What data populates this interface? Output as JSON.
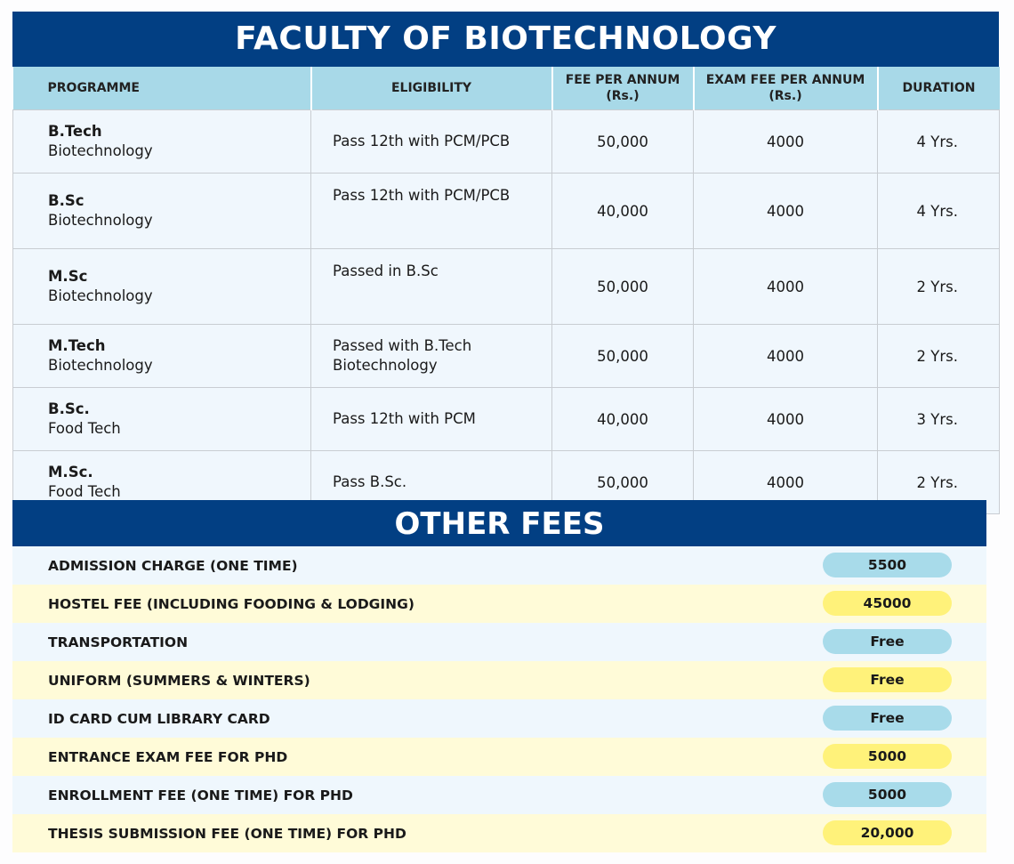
{
  "title": "FACULTY OF BIOTECHNOLOGY",
  "columns": {
    "programme": "PROGRAMME",
    "eligibility": "ELIGIBILITY",
    "fee_line1": "FEE PER ANNUM",
    "fee_line2": "(Rs.)",
    "exam_line1": "EXAM FEE PER ANNUM",
    "exam_line2": "(Rs.)",
    "duration": "DURATION"
  },
  "rows": [
    {
      "degree": "B.Tech",
      "subject": "Biotechnology",
      "eligibility": "Pass 12th with PCM/PCB",
      "fee": "50,000",
      "exam_fee": "4000",
      "duration": "4 Yrs."
    },
    {
      "degree": "B.Sc",
      "subject": "Biotechnology",
      "eligibility": "Pass 12th with PCM/PCB",
      "fee": "40,000",
      "exam_fee": "4000",
      "duration": "4 Yrs."
    },
    {
      "degree": "M.Sc",
      "subject": "Biotechnology",
      "eligibility": "Passed in B.Sc",
      "fee": "50,000",
      "exam_fee": "4000",
      "duration": "2 Yrs."
    },
    {
      "degree": "M.Tech",
      "subject": "Biotechnology",
      "eligibility": "Passed with B.Tech Biotechnology",
      "fee": "50,000",
      "exam_fee": "4000",
      "duration": "2 Yrs."
    },
    {
      "degree": "B.Sc.",
      "subject": "Food Tech",
      "eligibility": "Pass 12th with PCM",
      "fee": "40,000",
      "exam_fee": "4000",
      "duration": "3 Yrs."
    },
    {
      "degree": "M.Sc.",
      "subject": "Food Tech",
      "eligibility": "Pass B.Sc.",
      "fee": "50,000",
      "exam_fee": "4000",
      "duration": "2 Yrs."
    }
  ],
  "other_fees": {
    "title": "OTHER FEES",
    "items": [
      {
        "label": "ADMISSION CHARGE (ONE TIME)",
        "value": "5500"
      },
      {
        "label": "HOSTEL FEE (INCLUDING FOODING & LODGING)",
        "value": "45000"
      },
      {
        "label": "TRANSPORTATION",
        "value": "Free"
      },
      {
        "label": "UNIFORM (SUMMERS & WINTERS)",
        "value": "Free"
      },
      {
        "label": "ID CARD CUM LIBRARY CARD",
        "value": "Free"
      },
      {
        "label": "ENTRANCE EXAM FEE FOR PHD",
        "value": "5000"
      },
      {
        "label": "ENROLLMENT FEE (ONE TIME) FOR PHD",
        "value": "5000"
      },
      {
        "label": "THESIS SUBMISSION FEE (ONE TIME) FOR PHD",
        "value": "20,000"
      }
    ]
  },
  "colors": {
    "navy": "#023f83",
    "header": "#a8d9e8",
    "pill_blue": "#a8dbea",
    "pill_yellow": "#fff27a"
  }
}
